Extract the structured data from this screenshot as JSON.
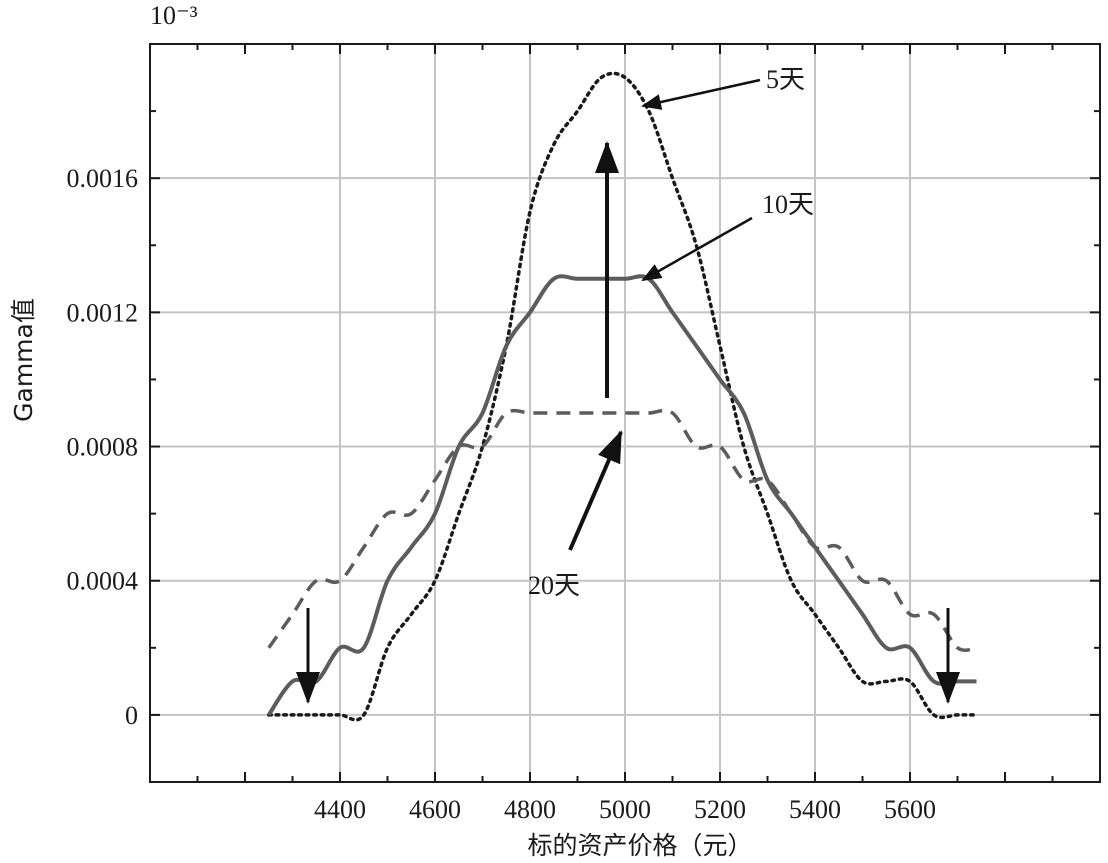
{
  "chart_data": {
    "type": "line",
    "title": "",
    "xlabel": "标的资产价格（元）",
    "ylabel": "Gamma值",
    "y_exponent_label": "10⁻³",
    "xlim": [
      4000,
      6000
    ],
    "ylim": [
      -0.0002,
      0.002
    ],
    "x_ticks": [
      4400,
      4600,
      4800,
      5000,
      5200,
      5400,
      5600
    ],
    "y_ticks": [
      0,
      0.0004,
      0.0008,
      0.0012,
      0.0016
    ],
    "y_tick_labels": [
      "0",
      "0.0004",
      "0.0008",
      "0.0012",
      "0.0016"
    ],
    "grid": true,
    "series": [
      {
        "name": "5天",
        "style": "dotted",
        "color": "#1a1a1a",
        "x": [
          4250,
          4300,
          4350,
          4400,
          4450,
          4500,
          4550,
          4600,
          4650,
          4700,
          4750,
          4800,
          4850,
          4900,
          4950,
          5000,
          5050,
          5100,
          5150,
          5200,
          5250,
          5300,
          5350,
          5400,
          5450,
          5500,
          5550,
          5600,
          5650,
          5700,
          5740
        ],
        "y": [
          0.0,
          0.0,
          0.0,
          0.0,
          0.0,
          0.0002,
          0.0003,
          0.0004,
          0.0006,
          0.0008,
          0.0011,
          0.0015,
          0.0017,
          0.0018,
          0.0019,
          0.0019,
          0.0018,
          0.0016,
          0.0014,
          0.0011,
          0.0008,
          0.0006,
          0.0004,
          0.0003,
          0.0002,
          0.0001,
          0.0001,
          0.0001,
          0.0,
          0.0,
          0.0
        ]
      },
      {
        "name": "10天",
        "style": "solid",
        "color": "#5c5c5c",
        "x": [
          4250,
          4300,
          4350,
          4400,
          4450,
          4500,
          4550,
          4600,
          4650,
          4700,
          4750,
          4800,
          4850,
          4900,
          4950,
          5000,
          5050,
          5100,
          5150,
          5200,
          5250,
          5300,
          5350,
          5400,
          5450,
          5500,
          5550,
          5600,
          5650,
          5700,
          5740
        ],
        "y": [
          0.0,
          0.0001,
          0.0001,
          0.0002,
          0.0002,
          0.0004,
          0.0005,
          0.0006,
          0.0008,
          0.0009,
          0.0011,
          0.0012,
          0.0013,
          0.0013,
          0.0013,
          0.0013,
          0.0013,
          0.0012,
          0.0011,
          0.001,
          0.0009,
          0.0007,
          0.0006,
          0.0005,
          0.0004,
          0.0003,
          0.0002,
          0.0002,
          0.0001,
          0.0001,
          0.0001
        ]
      },
      {
        "name": "20天",
        "style": "dashed",
        "color": "#5c5c5c",
        "x": [
          4250,
          4300,
          4350,
          4400,
          4450,
          4500,
          4550,
          4600,
          4650,
          4700,
          4750,
          4800,
          4850,
          4900,
          4950,
          5000,
          5050,
          5100,
          5150,
          5200,
          5250,
          5300,
          5350,
          5400,
          5450,
          5500,
          5550,
          5600,
          5650,
          5700,
          5740
        ],
        "y": [
          0.0002,
          0.0003,
          0.0004,
          0.0004,
          0.0005,
          0.0006,
          0.0006,
          0.0007,
          0.0008,
          0.0008,
          0.0009,
          0.0009,
          0.0009,
          0.0009,
          0.0009,
          0.0009,
          0.0009,
          0.0009,
          0.0008,
          0.0008,
          0.0007,
          0.0007,
          0.0006,
          0.0005,
          0.0005,
          0.0004,
          0.0004,
          0.0003,
          0.0003,
          0.0002,
          0.0002
        ]
      }
    ]
  }
}
